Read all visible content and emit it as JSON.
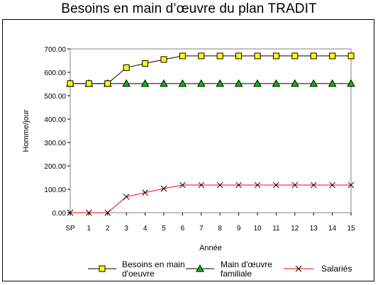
{
  "title": "Besoins en main d’œuvre du plan TRADIT",
  "chart_data": {
    "type": "line",
    "title": "Besoins en main d’œuvre du plan TRADIT",
    "xlabel": "Année",
    "ylabel": "Homme/jour",
    "ylim": [
      0,
      700
    ],
    "yticks": [
      "0.00",
      "100.00",
      "200.00",
      "300.00",
      "400.00",
      "500.00",
      "600.00",
      "700.00"
    ],
    "categories": [
      "SP",
      "1",
      "2",
      "3",
      "4",
      "5",
      "6",
      "7",
      "8",
      "9",
      "10",
      "11",
      "12",
      "13",
      "14",
      "15"
    ],
    "grid": false,
    "legend_position": "bottom",
    "series": [
      {
        "name": "Besoins en main d'oeuvre",
        "legend_lines": [
          "Besoins en main",
          "d'oeuvre"
        ],
        "color": "#000000",
        "marker": "square",
        "marker_fill": "#ffff00",
        "values": [
          552,
          552,
          552,
          620,
          638,
          655,
          670,
          670,
          670,
          670,
          670,
          670,
          670,
          670,
          670,
          670
        ]
      },
      {
        "name": "Main d'œuvre familiale",
        "legend_lines": [
          "Main d'œuvre",
          "familiale"
        ],
        "color": "#000000",
        "marker": "triangle",
        "marker_fill": "#00c000",
        "values": [
          552,
          552,
          552,
          552,
          552,
          552,
          552,
          552,
          552,
          552,
          552,
          552,
          552,
          552,
          552,
          552
        ]
      },
      {
        "name": "Salariés",
        "legend_lines": [
          "Salariés"
        ],
        "color": "#ff0000",
        "marker": "x",
        "marker_fill": "#000000",
        "values": [
          0,
          0,
          0,
          68,
          86,
          103,
          118,
          118,
          118,
          118,
          118,
          118,
          118,
          118,
          118,
          118
        ]
      }
    ]
  }
}
